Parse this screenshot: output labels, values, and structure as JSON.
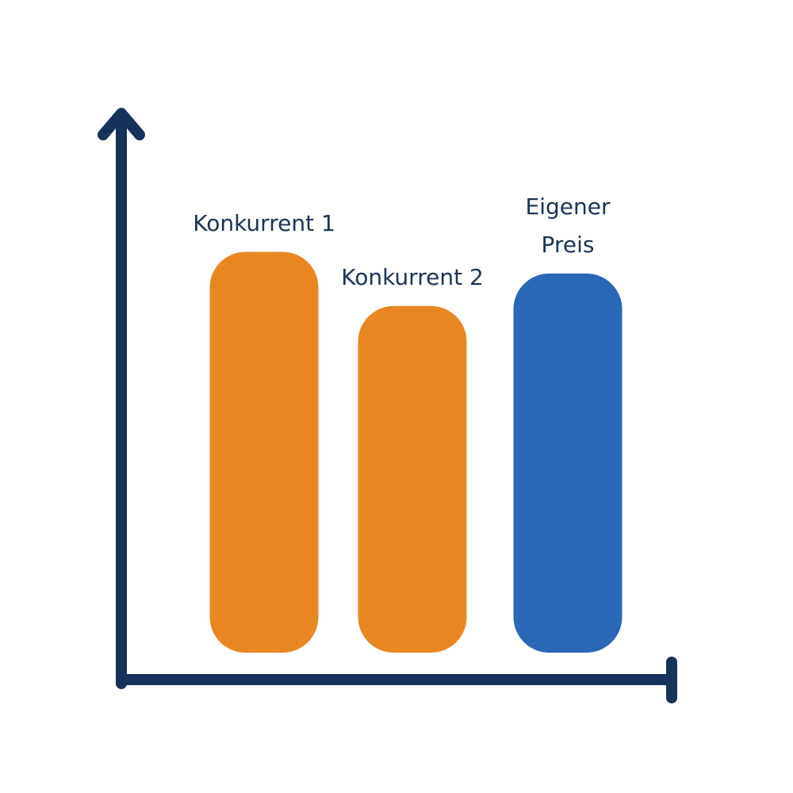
{
  "chart_data": {
    "type": "bar",
    "categories": [
      "Konkurrent 1",
      "Konkurrent 2",
      "Eigener Preis"
    ],
    "values": [
      74,
      64,
      70
    ],
    "colors": [
      "#e88722",
      "#e88722",
      "#2a67b7"
    ],
    "ylim": [
      0,
      100
    ]
  }
}
